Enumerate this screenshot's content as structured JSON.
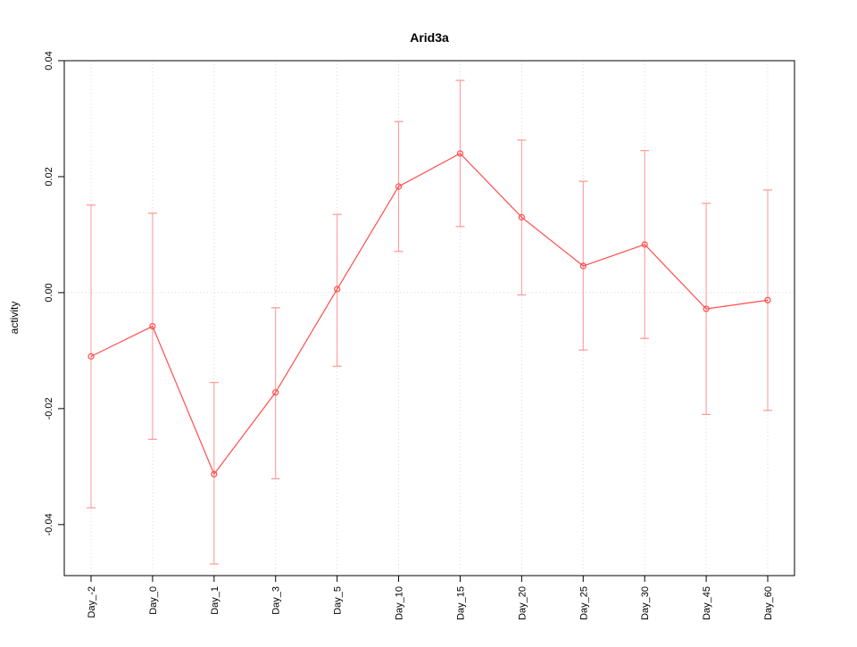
{
  "chart_data": {
    "type": "line",
    "title": "Arid3a",
    "ylabel": "activity",
    "xlabel": "",
    "categories": [
      "Day_-2",
      "Day_0",
      "Day_1",
      "Day_3",
      "Day_5",
      "Day_10",
      "Day_15",
      "Day_20",
      "Day_25",
      "Day_30",
      "Day_45",
      "Day_60"
    ],
    "series": [
      {
        "name": "activity",
        "means": [
          -0.011,
          -0.0058,
          -0.0313,
          -0.0172,
          0.0006,
          0.0183,
          0.024,
          0.013,
          0.0046,
          0.0083,
          -0.0028,
          -0.0013
        ],
        "error_low": [
          -0.0371,
          -0.0253,
          -0.0468,
          -0.0321,
          -0.0127,
          0.0071,
          0.0114,
          -0.0004,
          -0.0099,
          -0.0079,
          -0.021,
          -0.0203
        ],
        "error_high": [
          0.0151,
          0.0137,
          -0.0155,
          -0.0026,
          0.0135,
          0.0295,
          0.0366,
          0.0263,
          0.0192,
          0.0245,
          0.0154,
          0.0177
        ]
      }
    ],
    "ylim": [
      -0.0488,
      0.04
    ],
    "yticks": [
      -0.04,
      -0.02,
      0,
      0.02,
      0.04
    ],
    "ytick_labels": [
      "-0.04",
      "-0.02",
      "0.00",
      "0.02",
      "0.04"
    ],
    "grid": {
      "vertical_at_categories": true,
      "horizontal_at_zero": true,
      "style": "dotted"
    },
    "legend": "none",
    "colors": {
      "line": "#ff4d4d",
      "marker": "#ff4d4d",
      "error_bar": "#ff9595",
      "grid": "#d8d8d8",
      "axis": "#000000",
      "text": "#000000"
    }
  }
}
